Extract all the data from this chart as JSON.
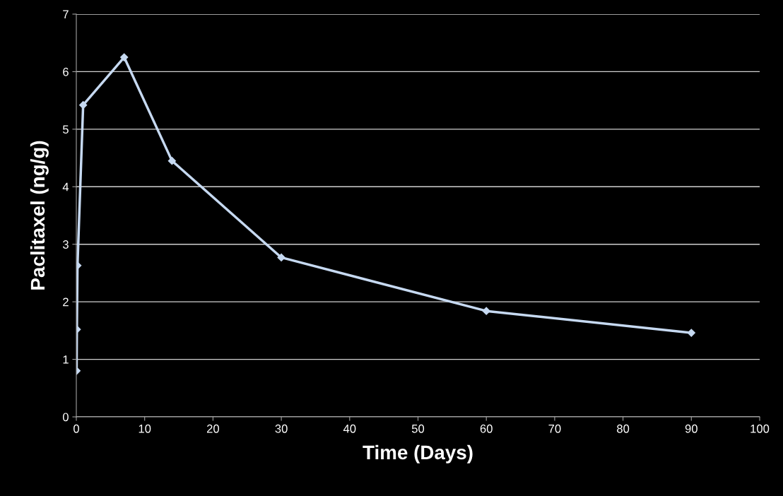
{
  "chart_data": {
    "type": "line",
    "xlabel": "Time (Days)",
    "ylabel": "Paclitaxel (ng/g)",
    "x": [
      0.04,
      0.08,
      0.17,
      1,
      7,
      14,
      30,
      60,
      90
    ],
    "series": [
      {
        "color": "#c6d9f1",
        "values": [
          0.8,
          1.52,
          2.63,
          5.42,
          6.25,
          4.45,
          2.77,
          1.84,
          1.46
        ]
      }
    ],
    "xlim": [
      0,
      100
    ],
    "xticks": [
      0,
      10,
      20,
      30,
      40,
      50,
      60,
      70,
      80,
      90,
      100
    ],
    "ylim": [
      0,
      7
    ],
    "yticks": [
      0,
      1,
      2,
      3,
      4,
      5,
      6,
      7
    ],
    "grid": "y",
    "marker": "diamond",
    "line_style": "solid"
  }
}
